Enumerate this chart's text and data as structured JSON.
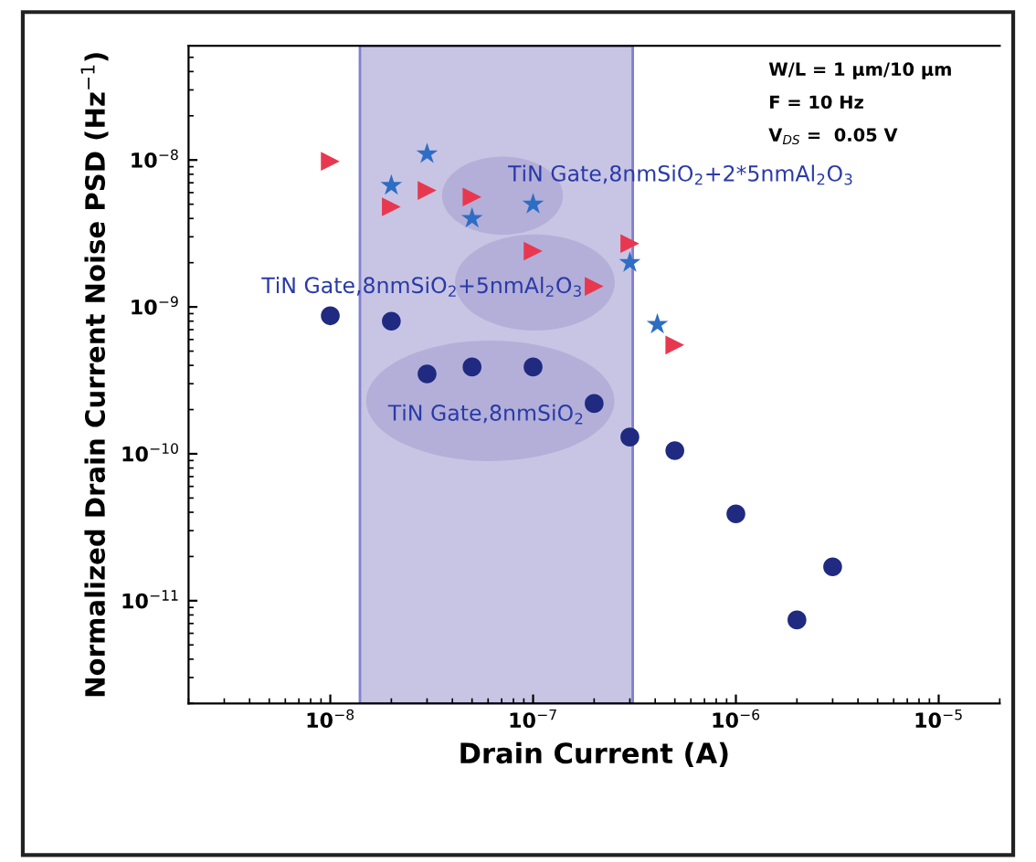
{
  "chart_data": {
    "type": "scatter",
    "xlabel": "Drain Current (A)",
    "ylabel": "Normalized Drain Current Noise PSD (Hz$^{−1}$)",
    "log": "xy",
    "grid": false,
    "legend": false,
    "xlim": [
      2e-09,
      2e-05
    ],
    "ylim": [
      2e-12,
      6e-08
    ],
    "xticks": [
      {
        "value": 1e-08,
        "label": "10$^{−8}$"
      },
      {
        "value": 1e-07,
        "label": "10$^{−7}$"
      },
      {
        "value": 1e-06,
        "label": "10$^{−6}$"
      },
      {
        "value": 1e-05,
        "label": "10$^{−5}$"
      }
    ],
    "yticks": [
      {
        "value": 1e-11,
        "label": "10$^{−11}$"
      },
      {
        "value": 1e-10,
        "label": "10$^{−10}$"
      },
      {
        "value": 1e-09,
        "label": "10$^{−9}$"
      },
      {
        "value": 1e-08,
        "label": "10$^{−8}$"
      }
    ],
    "bands": [
      {
        "axis": "x",
        "from": 1.4e-08,
        "to": 3.1e-07,
        "color": "#c8c5e4"
      }
    ],
    "series": [
      {
        "marker": "circle",
        "color": "#1f2a80",
        "x": [
          1e-08,
          2e-08,
          3e-08,
          5e-08,
          1e-07,
          2e-07,
          3e-07,
          5e-07,
          1e-06,
          2e-06,
          3e-06
        ],
        "values": [
          8.7e-10,
          8e-10,
          3.5e-10,
          3.9e-10,
          3.9e-10,
          2.2e-10,
          1.3e-10,
          1.05e-10,
          3.9e-11,
          7.4e-12,
          1.7e-11
        ]
      },
      {
        "marker": "triangle",
        "color": "#e8384f",
        "x": [
          1e-08,
          2e-08,
          3e-08,
          5e-08,
          1e-07,
          2e-07,
          3e-07,
          5e-07
        ],
        "values": [
          9.8e-09,
          4.8e-09,
          6.2e-09,
          5.6e-09,
          2.4e-09,
          1.38e-09,
          2.7e-09,
          5.5e-10
        ]
      },
      {
        "marker": "star",
        "color": "#2e6dc4",
        "x": [
          2e-08,
          3e-08,
          5e-08,
          1e-07,
          3e-07,
          4.1e-07
        ],
        "values": [
          6.7e-09,
          1.1e-08,
          4e-09,
          5e-09,
          2e-09,
          7.6e-10
        ]
      }
    ],
    "annotations": [
      "TiN Gate,8nmSiO$_{2}$+2*5nmAl$_{2}$O$_{3}$",
      "TiN Gate,8nmSiO$_{2}$+5nmAl$_{2}$O$_{3}$",
      "TiN Gate,8nmSiO$_{2}$",
      "W/L = 1 μm/10 μm",
      "F = 10 Hz",
      "V$_{DS}$ =  0.05 V"
    ]
  }
}
